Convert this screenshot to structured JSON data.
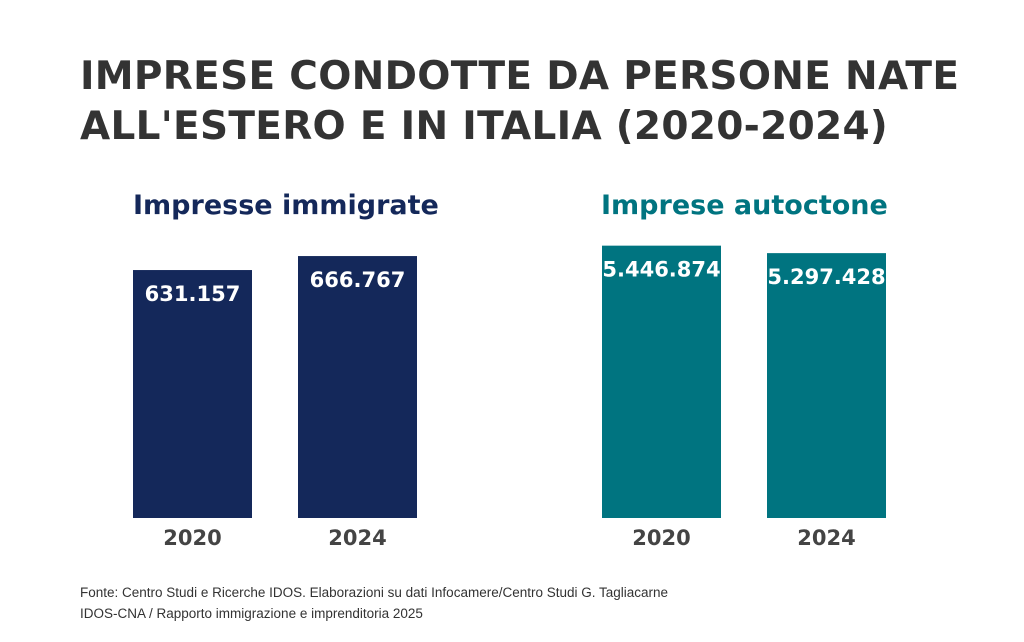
{
  "title": "IMPRESE CONDOTTE DA PERSONE NATE ALL'ESTERO E IN ITALIA (2020-2024)",
  "chart_data": [
    {
      "type": "bar",
      "title": "Impresse immigrate",
      "categories": [
        "2020",
        "2024"
      ],
      "values": [
        631157,
        666767
      ],
      "value_labels": [
        "631.157",
        "666.767"
      ],
      "color": "#14285a",
      "ylim": [
        0,
        700000
      ],
      "grid": false
    },
    {
      "type": "bar",
      "title": "Imprese autoctone",
      "categories": [
        "2020",
        "2024"
      ],
      "values": [
        5446874,
        5297428
      ],
      "value_labels": [
        "5.446.874",
        "5.297.428"
      ],
      "color": "#007480",
      "ylim": [
        0,
        5500000
      ],
      "grid": false
    }
  ],
  "source": {
    "line1": "Fonte: Centro Studi e Ricerche IDOS. Elaborazioni su dati Infocamere/Centro Studi G. Tagliacarne",
    "line2": "IDOS-CNA / Rapporto immigrazione e imprenditoria 2025"
  }
}
